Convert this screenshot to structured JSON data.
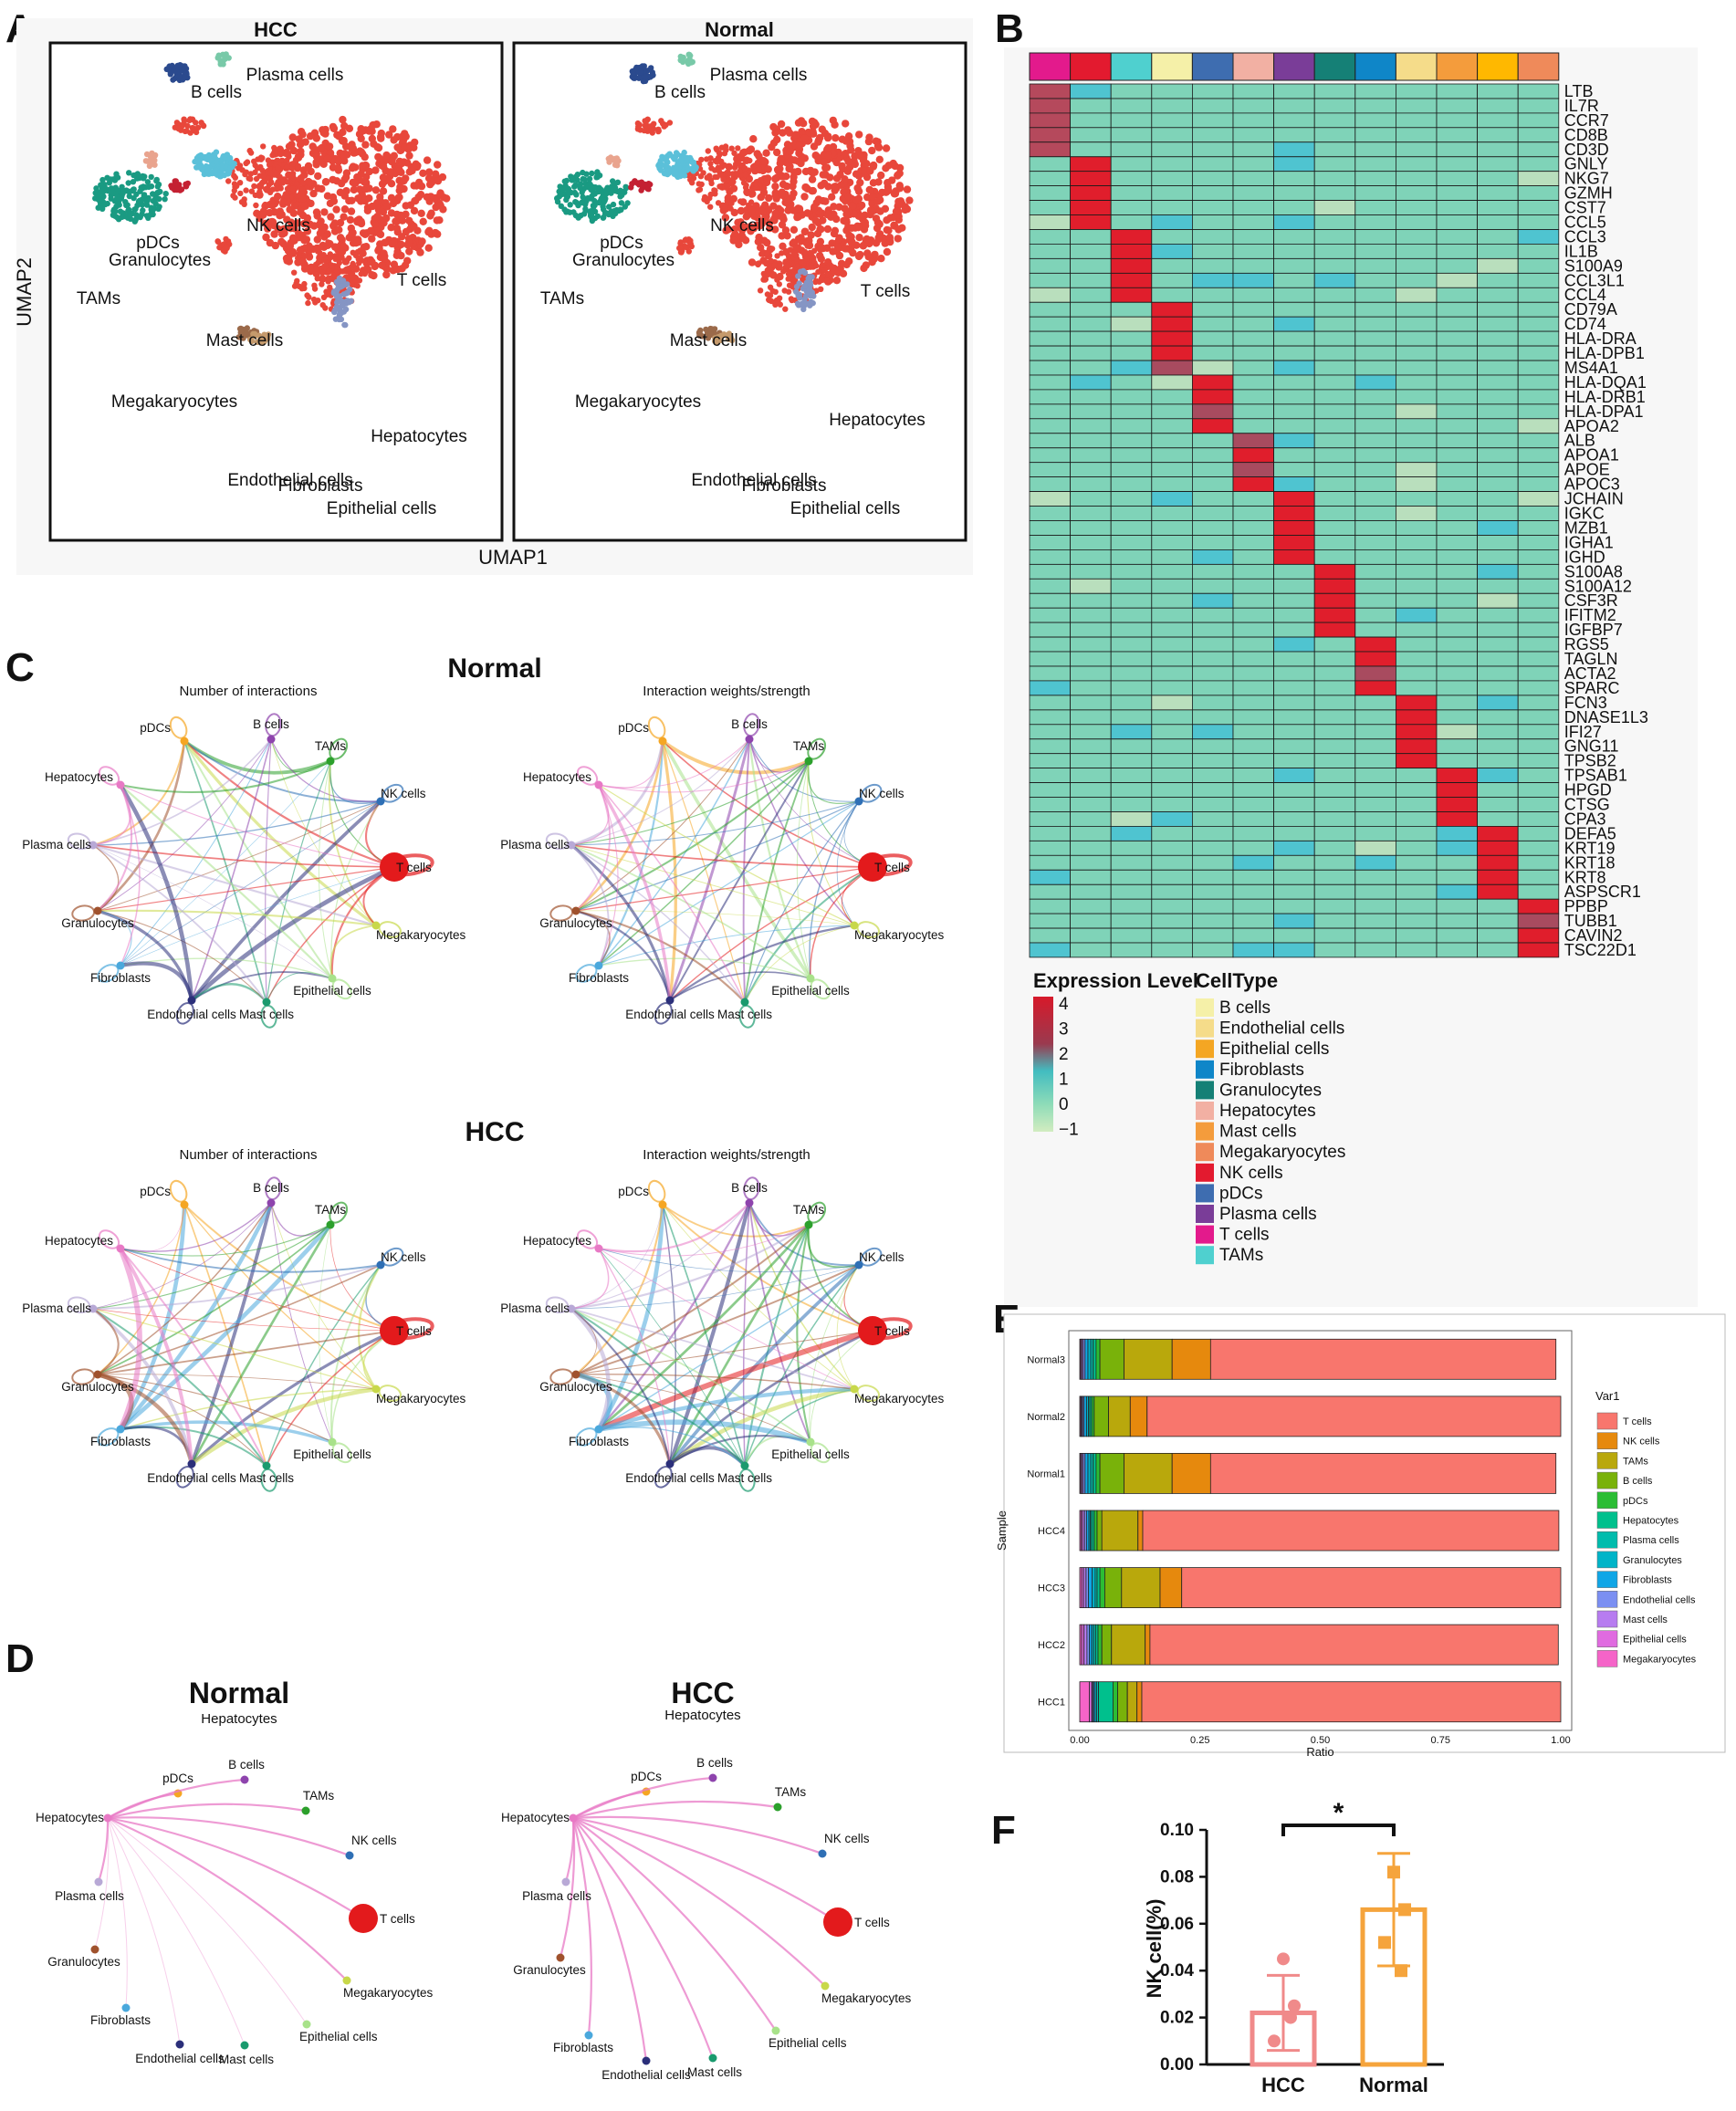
{
  "panel_labels": [
    "A",
    "B",
    "C",
    "D",
    "E",
    "F"
  ],
  "chart_data": [
    {
      "id": "A",
      "type": "scatter",
      "subtype": "umap",
      "facets": [
        "HCC",
        "Normal"
      ],
      "xlabel": "UMAP1",
      "ylabel": "UMAP2",
      "clusters": [
        {
          "name": "T cells",
          "color": "#e8473b"
        },
        {
          "name": "NK cells",
          "color": "#5bc0d9"
        },
        {
          "name": "B cells",
          "color": "#2b4a8e"
        },
        {
          "name": "Plasma cells",
          "color": "#78c9a8"
        },
        {
          "name": "pDCs",
          "color": "#e9a48e"
        },
        {
          "name": "Granulocytes",
          "color": "#c42032"
        },
        {
          "name": "TAMs",
          "color": "#1a9a82"
        },
        {
          "name": "Mast cells",
          "color": "#e8473b"
        },
        {
          "name": "Megakaryocytes",
          "color": "#e8473b"
        },
        {
          "name": "Hepatocytes",
          "color": "#8595c4"
        },
        {
          "name": "Endothelial cells",
          "color": "#9b6a4a"
        },
        {
          "name": "Fibroblasts",
          "color": "#c59a6c"
        },
        {
          "name": "Epithelial cells",
          "color": "#e88a5a"
        }
      ]
    },
    {
      "id": "B",
      "type": "heatmap",
      "genes": [
        "LTB",
        "IL7R",
        "CCR7",
        "CD8B",
        "CD3D",
        "GNLY",
        "NKG7",
        "GZMH",
        "CST7",
        "CCL5",
        "CCL3",
        "IL1B",
        "S100A9",
        "CCL3L1",
        "CCL4",
        "CD79A",
        "CD74",
        "HLA-DRA",
        "HLA-DPB1",
        "MS4A1",
        "HLA-DQA1",
        "HLA-DRB1",
        "HLA-DPA1",
        "APOA2",
        "ALB",
        "APOA1",
        "APOE",
        "APOC3",
        "JCHAIN",
        "IGKC",
        "MZB1",
        "IGHA1",
        "IGHD",
        "S100A8",
        "S100A12",
        "CSF3R",
        "IFITM2",
        "IGFBP7",
        "RGS5",
        "TAGLN",
        "ACTA2",
        "SPARC",
        "FCN3",
        "DNASE1L3",
        "IFI27",
        "GNG11",
        "TPSB2",
        "TPSAB1",
        "HPGD",
        "CTSG",
        "CPA3",
        "DEFA5",
        "KRT19",
        "KRT18",
        "KRT8",
        "ASPSCR1",
        "PPBP",
        "TUBB1",
        "CAVIN2",
        "TSC22D1"
      ],
      "column_colors": [
        "#e31a8c",
        "#e31a2f",
        "#4fd0cf",
        "#f5f0a8",
        "#3e6db0",
        "#f2b0a3",
        "#7a3d98",
        "#158076",
        "#0f86c8",
        "#f5dc8a",
        "#f49c3c",
        "#ffb800",
        "#ef8a5a"
      ],
      "gene_groups": [
        5,
        5,
        5,
        5,
        4,
        4,
        5,
        5,
        4,
        5,
        4,
        5,
        4
      ],
      "expression_level_title": "Expression Level",
      "expression_level_ticks": [
        "4",
        "3",
        "2",
        "1",
        "0",
        "−1"
      ],
      "celltype_title": "CellType",
      "celltypes": [
        {
          "name": "B cells",
          "color": "#f5f0a8"
        },
        {
          "name": "Endothelial cells",
          "color": "#f5dc8a"
        },
        {
          "name": "Epithelial cells",
          "color": "#f4a623"
        },
        {
          "name": "Fibroblasts",
          "color": "#0f86c8"
        },
        {
          "name": "Granulocytes",
          "color": "#158076"
        },
        {
          "name": "Hepatocytes",
          "color": "#f2b0a3"
        },
        {
          "name": "Mast cells",
          "color": "#f49c3c"
        },
        {
          "name": "Megakaryocytes",
          "color": "#ef8a5a"
        },
        {
          "name": "NK cells",
          "color": "#e31a2f"
        },
        {
          "name": "pDCs",
          "color": "#3e6db0"
        },
        {
          "name": "Plasma cells",
          "color": "#7a3d98"
        },
        {
          "name": "T cells",
          "color": "#e31a8c"
        },
        {
          "name": "TAMs",
          "color": "#4fd0cf"
        }
      ]
    },
    {
      "id": "C",
      "type": "network",
      "groups": [
        {
          "title": "Normal",
          "subtitles": [
            "Number of interactions",
            "Interaction weights/strength"
          ]
        },
        {
          "title": "HCC",
          "subtitles": [
            "Number of interactions",
            "Interaction weights/strength"
          ]
        }
      ],
      "nodes": [
        {
          "name": "pDCs",
          "color": "#f5a623"
        },
        {
          "name": "B cells",
          "color": "#8e44ad"
        },
        {
          "name": "TAMs",
          "color": "#2ca02c"
        },
        {
          "name": "NK cells",
          "color": "#2e6fb5"
        },
        {
          "name": "T cells",
          "color": "#e31a1c"
        },
        {
          "name": "Megakaryocytes",
          "color": "#c8d84a"
        },
        {
          "name": "Epithelial cells",
          "color": "#a8e28a"
        },
        {
          "name": "Mast cells",
          "color": "#1a9a6e"
        },
        {
          "name": "Endothelial cells",
          "color": "#2b2f7a"
        },
        {
          "name": "Fibroblasts",
          "color": "#4aa8dc"
        },
        {
          "name": "Granulocytes",
          "color": "#a0522d"
        },
        {
          "name": "Plasma cells",
          "color": "#b8a9d6"
        },
        {
          "name": "Hepatocytes",
          "color": "#e879c5"
        }
      ]
    },
    {
      "id": "D",
      "type": "network",
      "groups": [
        {
          "title": "Normal",
          "subtitle": "Hepatocytes"
        },
        {
          "title": "HCC",
          "subtitle": "Hepatocytes"
        }
      ],
      "source": "Hepatocytes"
    },
    {
      "id": "E",
      "type": "bar",
      "orientation": "horizontal",
      "stacked": true,
      "ylabel": "Sample",
      "xlabel": "Ratio",
      "xlim": [
        0,
        1
      ],
      "xticks": [
        "0.00",
        "0.25",
        "0.50",
        "0.75",
        "1.00"
      ],
      "legend_title": "Var1",
      "categories": [
        "Normal3",
        "Normal2",
        "Normal1",
        "HCC4",
        "HCC3",
        "HCC2",
        "HCC1"
      ],
      "series": [
        {
          "name": "Megakaryocytes",
          "color": "#f564c8",
          "values": [
            0.002,
            0.002,
            0.002,
            0.003,
            0.004,
            0.004,
            0.02
          ]
        },
        {
          "name": "Epithelial cells",
          "color": "#e06be0",
          "values": [
            0.002,
            0.002,
            0.002,
            0.003,
            0.004,
            0.005,
            0.005
          ]
        },
        {
          "name": "Mast cells",
          "color": "#b77cf0",
          "values": [
            0.003,
            0.002,
            0.003,
            0.004,
            0.005,
            0.006,
            0.002
          ]
        },
        {
          "name": "Endothelial cells",
          "color": "#7b8ff2",
          "values": [
            0.004,
            0.003,
            0.004,
            0.004,
            0.005,
            0.005,
            0.002
          ]
        },
        {
          "name": "Fibroblasts",
          "color": "#10a6e6",
          "values": [
            0.006,
            0.005,
            0.006,
            0.005,
            0.008,
            0.005,
            0.003
          ]
        },
        {
          "name": "Granulocytes",
          "color": "#00b4c8",
          "values": [
            0.006,
            0.004,
            0.006,
            0.003,
            0.006,
            0.004,
            0.003
          ]
        },
        {
          "name": "Plasma cells",
          "color": "#00bcad",
          "values": [
            0.005,
            0.003,
            0.005,
            0.003,
            0.004,
            0.004,
            0.004
          ]
        },
        {
          "name": "Hepatocytes",
          "color": "#00c08d",
          "values": [
            0.006,
            0.004,
            0.006,
            0.005,
            0.006,
            0.005,
            0.03
          ]
        },
        {
          "name": "pDCs",
          "color": "#2bbd34",
          "values": [
            0.008,
            0.005,
            0.008,
            0.006,
            0.01,
            0.008,
            0.01
          ]
        },
        {
          "name": "B cells",
          "color": "#79b20a",
          "values": [
            0.05,
            0.03,
            0.05,
            0.01,
            0.035,
            0.02,
            0.02
          ]
        },
        {
          "name": "TAMs",
          "color": "#b9a80c",
          "values": [
            0.1,
            0.045,
            0.1,
            0.075,
            0.08,
            0.07,
            0.02
          ]
        },
        {
          "name": "NK cells",
          "color": "#e6890d",
          "values": [
            0.08,
            0.035,
            0.08,
            0.01,
            0.045,
            0.01,
            0.01
          ]
        },
        {
          "name": "T cells",
          "color": "#f8766d",
          "values": [
            0.718,
            0.86,
            0.718,
            0.865,
            0.788,
            0.849,
            0.871
          ]
        }
      ]
    },
    {
      "id": "F",
      "type": "bar",
      "categories": [
        "HCC",
        "Normal"
      ],
      "ylabel": "NK cell(%)",
      "ylim": [
        0,
        0.1
      ],
      "yticks": [
        "0.00",
        "0.02",
        "0.04",
        "0.06",
        "0.08",
        "0.10"
      ],
      "values": [
        0.022,
        0.066
      ],
      "sd": [
        0.016,
        0.024
      ],
      "points": [
        [
          0.045,
          0.025,
          0.01,
          0.02
        ],
        [
          0.082,
          0.066,
          0.052,
          0.04
        ]
      ],
      "colors": [
        "#f08a8a",
        "#f5a43c"
      ],
      "significance": "*"
    }
  ]
}
